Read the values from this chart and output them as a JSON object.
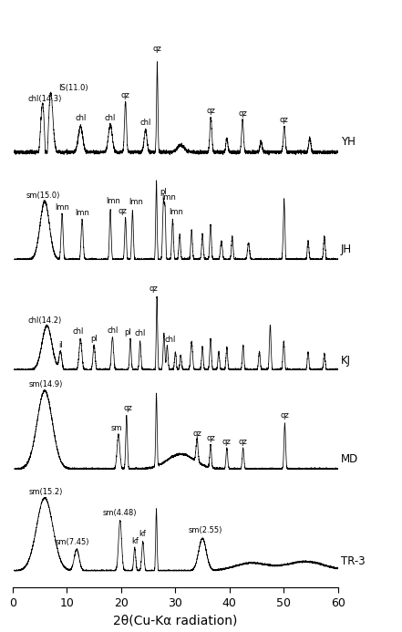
{
  "xlabel": "2θ(Cu-Kα radiation)",
  "xlim": [
    0,
    60
  ],
  "samples": [
    "YH",
    "JH",
    "KJ",
    "MD",
    "TR-3"
  ],
  "sample_offsets": [
    0.76,
    0.57,
    0.375,
    0.2,
    0.02
  ],
  "sample_scales": [
    0.16,
    0.14,
    0.13,
    0.14,
    0.13
  ],
  "background_color": "#ffffff",
  "line_color": "#000000"
}
